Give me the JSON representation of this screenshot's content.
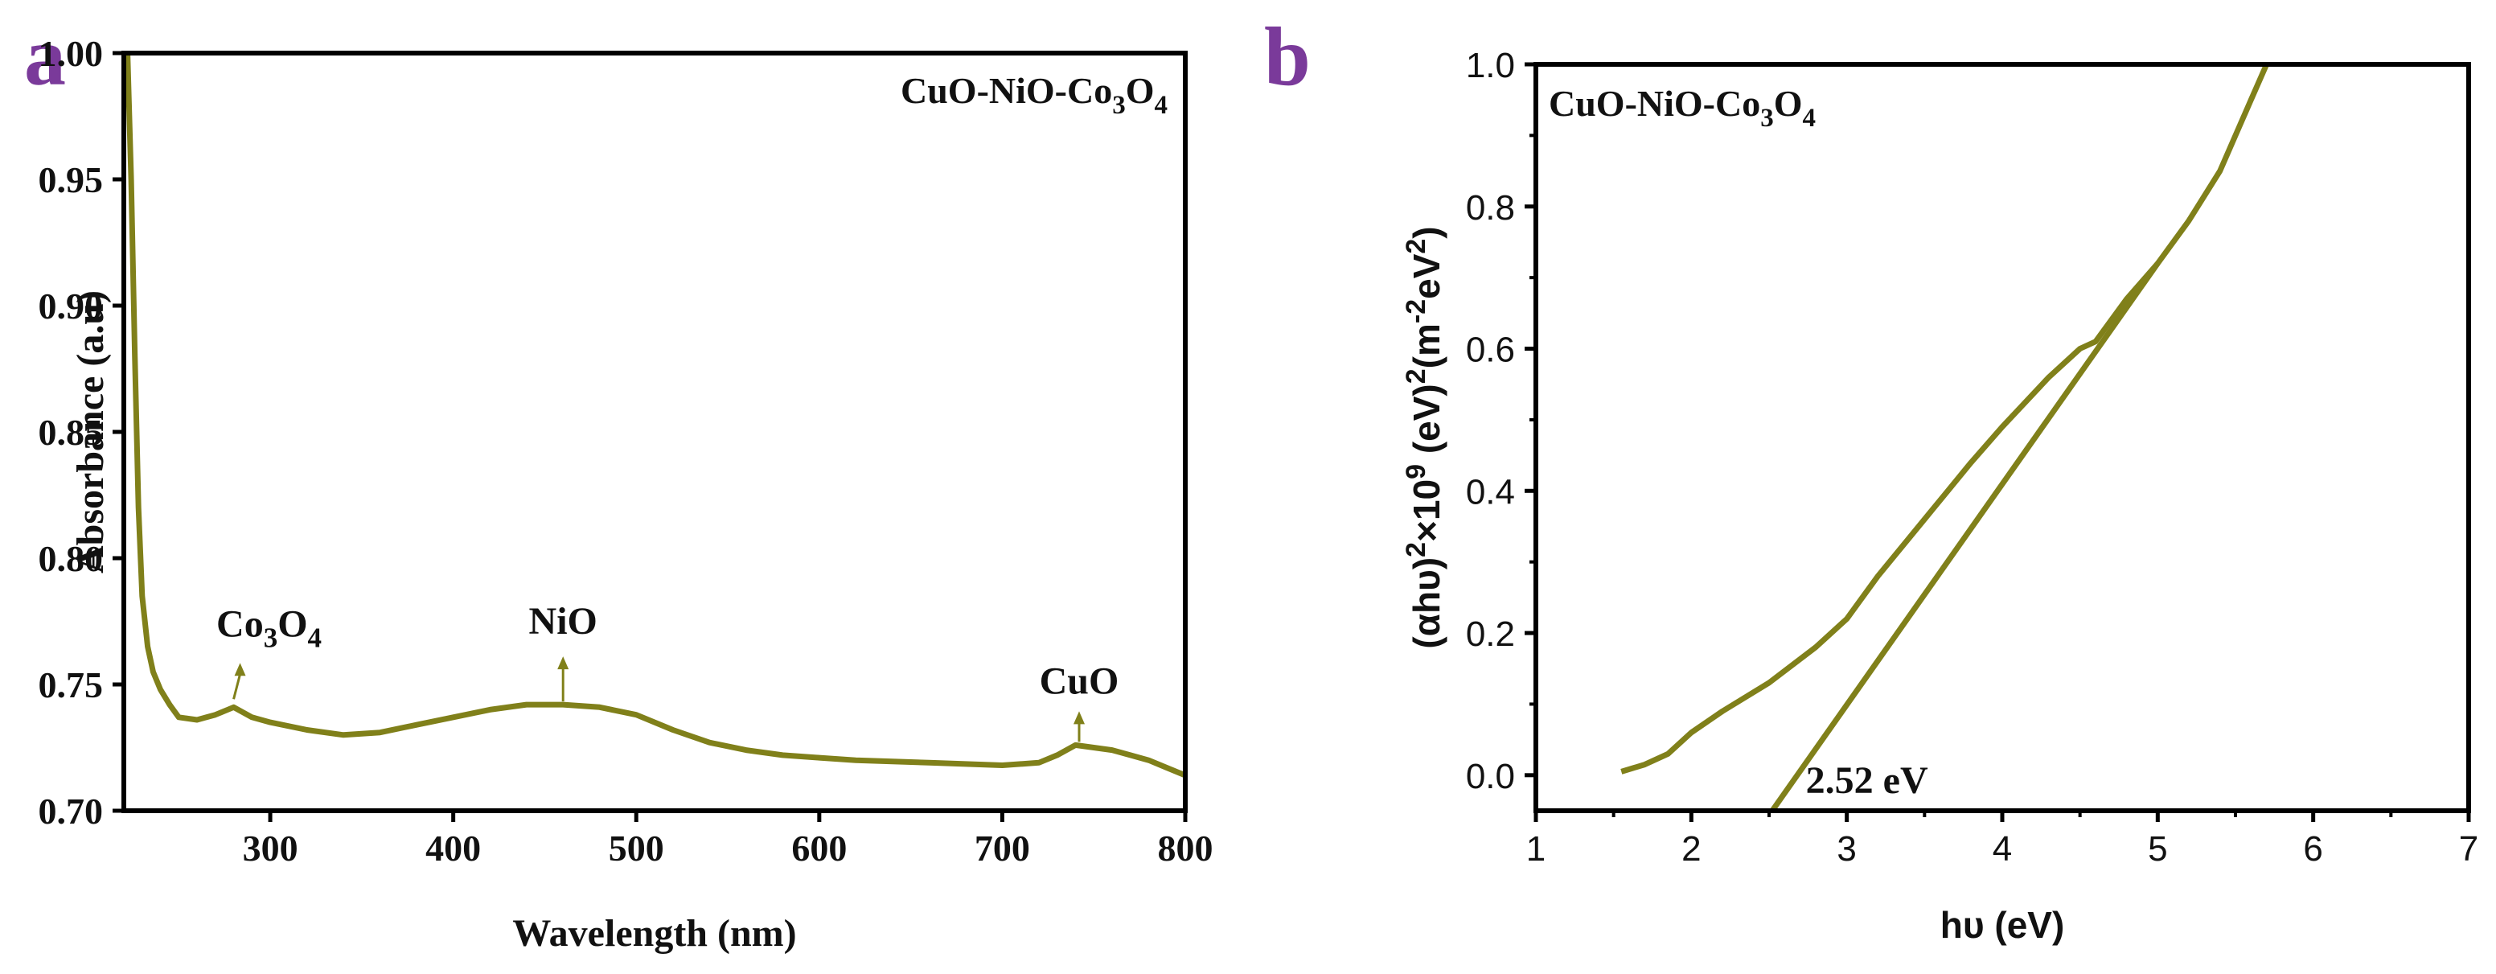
{
  "figure": {
    "panel_a_label": "a",
    "panel_b_label": "b",
    "line_color": "#80801a",
    "arrow_color": "#80801a",
    "letter_color": "#7a3a9a"
  },
  "chart_data": [
    {
      "type": "line",
      "panel": "a",
      "sample_label_parts": [
        "CuO-NiO-Co",
        "3",
        "O",
        "4"
      ],
      "xlabel": "Wavelength (nm)",
      "ylabel": "Absorbance (a.u)",
      "xlim": [
        220,
        800
      ],
      "ylim": [
        0.7,
        1.0
      ],
      "xticks": [
        300,
        400,
        500,
        600,
        700,
        800
      ],
      "xtick_labels": [
        "300",
        "400",
        "500",
        "600",
        "700",
        "800"
      ],
      "yticks": [
        0.7,
        0.75,
        0.8,
        0.85,
        0.9,
        0.95,
        1.0
      ],
      "ytick_labels": [
        "0.70",
        "0.75",
        "0.80",
        "0.85",
        "0.90",
        "0.95",
        "1.00"
      ],
      "series": [
        {
          "name": "CuO-NiO-Co3O4",
          "x": [
            222,
            224,
            226,
            228,
            230,
            233,
            236,
            240,
            245,
            250,
            260,
            270,
            280,
            290,
            300,
            320,
            340,
            360,
            380,
            400,
            420,
            440,
            460,
            480,
            500,
            520,
            540,
            560,
            580,
            600,
            620,
            640,
            660,
            680,
            700,
            720,
            730,
            740,
            750,
            760,
            770,
            780,
            790,
            800
          ],
          "y": [
            1.0,
            0.95,
            0.88,
            0.82,
            0.785,
            0.765,
            0.755,
            0.748,
            0.742,
            0.737,
            0.736,
            0.738,
            0.741,
            0.737,
            0.735,
            0.732,
            0.73,
            0.731,
            0.734,
            0.737,
            0.74,
            0.742,
            0.742,
            0.741,
            0.738,
            0.732,
            0.727,
            0.724,
            0.722,
            0.721,
            0.72,
            0.7195,
            0.719,
            0.7185,
            0.718,
            0.719,
            0.722,
            0.726,
            0.725,
            0.724,
            0.722,
            0.72,
            0.717,
            0.714
          ]
        }
      ],
      "annotations": [
        {
          "label_parts": [
            "Co",
            "3",
            "O",
            "4"
          ],
          "x": 280,
          "y": 0.741
        },
        {
          "label_parts": [
            "NiO"
          ],
          "x": 460,
          "y": 0.742
        },
        {
          "label_parts": [
            "CuO"
          ],
          "x": 742,
          "y": 0.726
        }
      ]
    },
    {
      "type": "line",
      "panel": "b",
      "sample_label_parts": [
        "CuO-NiO-Co",
        "3",
        "O",
        "4"
      ],
      "xlabel": "hυ (eV)",
      "ylabel_parts": [
        "(αhυ)",
        "2",
        "×10",
        "9",
        " (eV)",
        "2",
        "(m",
        "-2",
        "eV",
        "2",
        ")"
      ],
      "xlim": [
        1,
        7
      ],
      "ylim": [
        -0.05,
        1.0
      ],
      "xticks": [
        1,
        2,
        3,
        4,
        5,
        6,
        7
      ],
      "xtick_labels": [
        "1",
        "2",
        "3",
        "4",
        "5",
        "6",
        "7"
      ],
      "yticks": [
        0.0,
        0.2,
        0.4,
        0.6,
        0.8,
        1.0
      ],
      "ytick_labels": [
        "0.0",
        "0.2",
        "0.4",
        "0.6",
        "0.8",
        "1.0"
      ],
      "series": [
        {
          "name": "Tauc plot",
          "x": [
            1.55,
            1.7,
            1.85,
            2.0,
            2.2,
            2.5,
            2.8,
            3.0,
            3.2,
            3.5,
            3.8,
            4.0,
            4.3,
            4.5,
            4.6,
            4.8,
            5.0,
            5.2,
            5.4,
            5.5,
            5.6,
            5.7
          ],
          "y": [
            0.005,
            0.015,
            0.03,
            0.06,
            0.09,
            0.13,
            0.18,
            0.22,
            0.28,
            0.36,
            0.44,
            0.49,
            0.56,
            0.6,
            0.61,
            0.67,
            0.72,
            0.78,
            0.85,
            0.9,
            0.95,
            1.0
          ]
        },
        {
          "name": "Linear fit",
          "x": [
            2.52,
            5.0
          ],
          "y": [
            -0.05,
            0.72
          ]
        }
      ],
      "annotations": [
        {
          "label_parts": [
            "2.52 eV"
          ],
          "x": 2.55,
          "y": -0.05
        }
      ]
    }
  ]
}
